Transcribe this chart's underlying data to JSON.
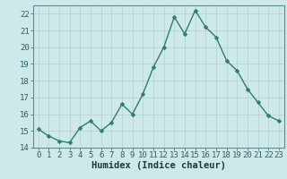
{
  "x": [
    0,
    1,
    2,
    3,
    4,
    5,
    6,
    7,
    8,
    9,
    10,
    11,
    12,
    13,
    14,
    15,
    16,
    17,
    18,
    19,
    20,
    21,
    22,
    23
  ],
  "y": [
    15.1,
    14.7,
    14.4,
    14.3,
    15.2,
    15.6,
    15.0,
    15.5,
    16.6,
    16.0,
    17.2,
    18.8,
    20.0,
    21.8,
    20.8,
    22.2,
    21.2,
    20.6,
    19.2,
    18.6,
    17.5,
    16.7,
    15.9,
    15.6
  ],
  "line_color": "#2e7d6e",
  "marker_color": "#2e7d6e",
  "bg_color": "#cee9e9",
  "grid_color_major": "#b8d4d4",
  "xlabel": "Humidex (Indice chaleur)",
  "xlim": [
    -0.5,
    23.5
  ],
  "ylim": [
    14,
    22.5
  ],
  "yticks": [
    14,
    15,
    16,
    17,
    18,
    19,
    20,
    21,
    22
  ],
  "xticks": [
    0,
    1,
    2,
    3,
    4,
    5,
    6,
    7,
    8,
    9,
    10,
    11,
    12,
    13,
    14,
    15,
    16,
    17,
    18,
    19,
    20,
    21,
    22,
    23
  ],
  "xtick_labels": [
    "0",
    "1",
    "2",
    "3",
    "4",
    "5",
    "6",
    "7",
    "8",
    "9",
    "10",
    "11",
    "12",
    "13",
    "14",
    "15",
    "16",
    "17",
    "18",
    "19",
    "20",
    "21",
    "22",
    "23"
  ],
  "font_size_ticks": 6.5,
  "font_size_xlabel": 7.5,
  "line_width": 1.0,
  "marker_size": 2.5
}
